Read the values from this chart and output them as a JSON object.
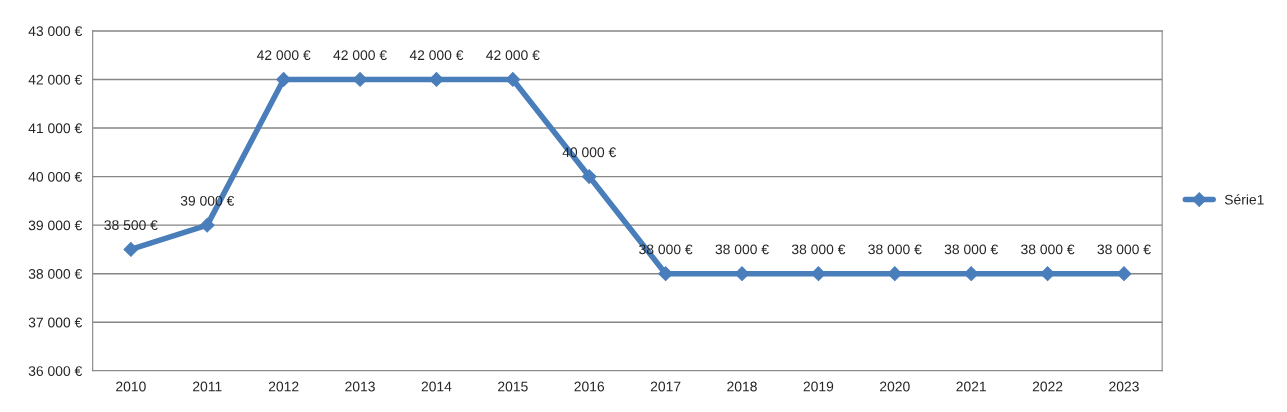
{
  "chart_data": {
    "type": "line",
    "categories": [
      "2010",
      "2011",
      "2012",
      "2013",
      "2014",
      "2015",
      "2016",
      "2017",
      "2018",
      "2019",
      "2020",
      "2021",
      "2022",
      "2023"
    ],
    "series": [
      {
        "name": "Série1",
        "color": "#4a7ebb",
        "values": [
          38500,
          39000,
          42000,
          42000,
          42000,
          42000,
          40000,
          38000,
          38000,
          38000,
          38000,
          38000,
          38000,
          38000
        ],
        "value_labels": [
          "38 500 €",
          "39 000 €",
          "42 000 €",
          "42 000 €",
          "42 000 €",
          "42 000 €",
          "40 000 €",
          "38 000 €",
          "38 000 €",
          "38 000 €",
          "38 000 €",
          "38 000 €",
          "38 000 €",
          "38 000 €"
        ]
      }
    ],
    "ylim": [
      36000,
      43000
    ],
    "yticks": [
      {
        "value": 36000,
        "label": "36 000 €"
      },
      {
        "value": 37000,
        "label": "37 000 €"
      },
      {
        "value": 38000,
        "label": "38 000 €"
      },
      {
        "value": 39000,
        "label": "39 000 €"
      },
      {
        "value": 40000,
        "label": "40 000 €"
      },
      {
        "value": 41000,
        "label": "41 000 €"
      },
      {
        "value": 42000,
        "label": "42 000 €"
      },
      {
        "value": 43000,
        "label": "43 000 €"
      }
    ],
    "grid": "y",
    "legend": "right",
    "marker": "diamond",
    "line_style": "solid"
  }
}
